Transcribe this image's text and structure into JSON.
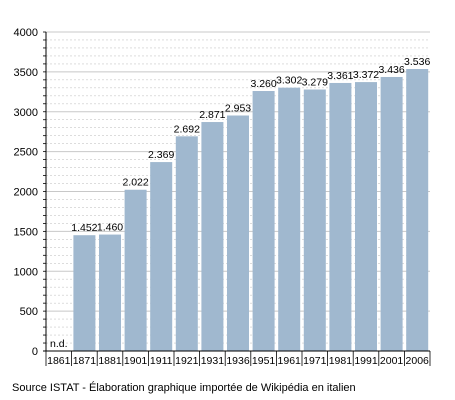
{
  "chart_data": {
    "type": "bar",
    "categories": [
      "1861",
      "1871",
      "1881",
      "1901",
      "1911",
      "1921",
      "1931",
      "1936",
      "1951",
      "1961",
      "1971",
      "1981",
      "1991",
      "2001",
      "2006"
    ],
    "values": [
      null,
      1452,
      1460,
      2022,
      2369,
      2692,
      2871,
      2953,
      3260,
      3302,
      3279,
      3361,
      3372,
      3436,
      3536
    ],
    "data_labels": [
      "n.d.",
      "1.452",
      "1.460",
      "2.022",
      "2.369",
      "2.692",
      "2.871",
      "2.953",
      "3.260",
      "3.302",
      "3.279",
      "3.361",
      "3.372",
      "3.436",
      "3.536"
    ],
    "yticks": [
      "0",
      "500",
      "1000",
      "1500",
      "2000",
      "2500",
      "3000",
      "3500",
      "4000"
    ],
    "ylim": [
      0,
      4000
    ],
    "grid": true,
    "bar_color": "#a0b8cf",
    "grid_color": "#c8c8c8"
  },
  "source_text": "Source ISTAT - Élaboration graphique importée de Wikipédia en italien"
}
